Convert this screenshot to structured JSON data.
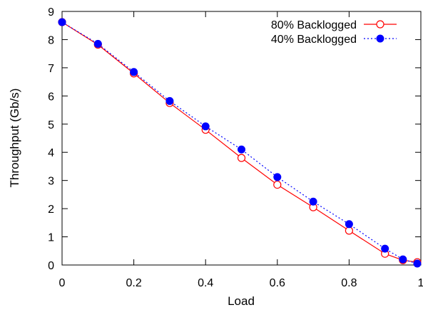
{
  "chart_data": {
    "type": "line",
    "xlabel": "Load",
    "ylabel": "Throughput (Gb/s)",
    "xlim": [
      0,
      1
    ],
    "ylim": [
      0,
      9
    ],
    "x_ticks": [
      0,
      0.2,
      0.4,
      0.6,
      0.8,
      1
    ],
    "x_tick_labels": [
      "0",
      "0.2",
      "0.4",
      "0.6",
      "0.8",
      "1"
    ],
    "y_ticks": [
      0,
      1,
      2,
      3,
      4,
      5,
      6,
      7,
      8,
      9
    ],
    "y_tick_labels": [
      "0",
      "1",
      "2",
      "3",
      "4",
      "5",
      "6",
      "7",
      "8",
      "9"
    ],
    "grid": false,
    "legend_position": "top-right",
    "series": [
      {
        "name": "80% Backlogged",
        "color": "#ff0000",
        "line_style": "solid",
        "marker": "open-circle",
        "x": [
          0,
          0.1,
          0.2,
          0.3,
          0.4,
          0.5,
          0.6,
          0.7,
          0.8,
          0.9,
          0.95,
          0.99
        ],
        "y": [
          8.62,
          7.82,
          6.8,
          5.75,
          4.8,
          3.8,
          2.85,
          2.05,
          1.22,
          0.4,
          0.17,
          0.1
        ]
      },
      {
        "name": "40% Backlogged",
        "color": "#0000ff",
        "line_style": "dotted",
        "marker": "filled-circle",
        "x": [
          0,
          0.1,
          0.2,
          0.3,
          0.4,
          0.5,
          0.6,
          0.7,
          0.8,
          0.9,
          0.95,
          0.99
        ],
        "y": [
          8.62,
          7.85,
          6.85,
          5.82,
          4.92,
          4.1,
          3.12,
          2.25,
          1.45,
          0.58,
          0.2,
          0.05
        ]
      }
    ]
  }
}
